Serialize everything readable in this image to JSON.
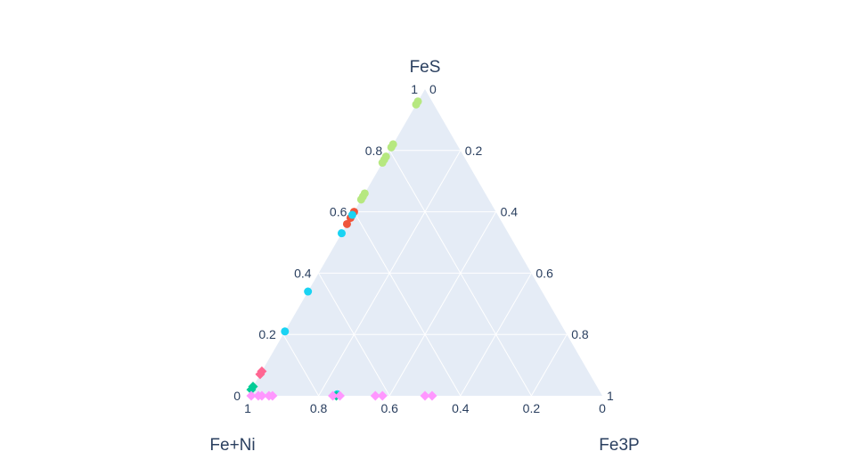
{
  "chart_data": {
    "type": "scatter",
    "subtype": "ternary",
    "title": "",
    "axes": {
      "a": {
        "title": "FeS",
        "ticks": [
          "0",
          "0.2",
          "0.4",
          "0.6",
          "0.8",
          "1"
        ]
      },
      "b": {
        "title": "Fe+Ni",
        "ticks": [
          "0",
          "0.2",
          "0.4",
          "0.6",
          "0.8",
          "1"
        ]
      },
      "c": {
        "title": "Fe3P",
        "ticks": [
          "0",
          "0.2",
          "0.4",
          "0.6",
          "0.8",
          "1"
        ]
      }
    },
    "grid": true,
    "legend": false,
    "colors": {
      "plot_bg": "#e5ecf6",
      "grid": "#ffffff",
      "text": "#2a3f5f"
    },
    "series": [
      {
        "color": "#b6e880",
        "symbol": "circle",
        "points": [
          {
            "a": 0.96,
            "b": 0.04,
            "c": 0.0
          },
          {
            "a": 0.95,
            "b": 0.05,
            "c": 0.0
          },
          {
            "a": 0.82,
            "b": 0.18,
            "c": 0.0
          },
          {
            "a": 0.81,
            "b": 0.19,
            "c": 0.0
          },
          {
            "a": 0.78,
            "b": 0.22,
            "c": 0.0
          },
          {
            "a": 0.77,
            "b": 0.23,
            "c": 0.0
          },
          {
            "a": 0.76,
            "b": 0.24,
            "c": 0.0
          },
          {
            "a": 0.66,
            "b": 0.34,
            "c": 0.0
          },
          {
            "a": 0.65,
            "b": 0.35,
            "c": 0.0
          },
          {
            "a": 0.64,
            "b": 0.36,
            "c": 0.0
          }
        ]
      },
      {
        "color": "#ef553b",
        "symbol": "circle",
        "points": [
          {
            "a": 0.6,
            "b": 0.4,
            "c": 0.0
          },
          {
            "a": 0.58,
            "b": 0.42,
            "c": 0.0
          },
          {
            "a": 0.56,
            "b": 0.44,
            "c": 0.0
          }
        ]
      },
      {
        "color": "#19d3f3",
        "symbol": "circle",
        "points": [
          {
            "a": 0.59,
            "b": 0.41,
            "c": 0.0
          },
          {
            "a": 0.53,
            "b": 0.47,
            "c": 0.0
          },
          {
            "a": 0.34,
            "b": 0.66,
            "c": 0.0
          },
          {
            "a": 0.21,
            "b": 0.79,
            "c": 0.0
          },
          {
            "a": 0.005,
            "b": 0.745,
            "c": 0.25
          }
        ]
      },
      {
        "color": "#ff6692",
        "symbol": "diamond",
        "points": [
          {
            "a": 0.08,
            "b": 0.92,
            "c": 0.0
          },
          {
            "a": 0.07,
            "b": 0.93,
            "c": 0.0
          }
        ]
      },
      {
        "color": "#00cc96",
        "symbol": "diamond",
        "points": [
          {
            "a": 0.03,
            "b": 0.97,
            "c": 0.0
          },
          {
            "a": 0.02,
            "b": 0.98,
            "c": 0.0
          },
          {
            "a": 0.0,
            "b": 0.75,
            "c": 0.25
          }
        ]
      },
      {
        "color": "#ff97ff",
        "symbol": "diamond",
        "points": [
          {
            "a": 0.0,
            "b": 0.99,
            "c": 0.01
          },
          {
            "a": 0.0,
            "b": 0.97,
            "c": 0.03
          },
          {
            "a": 0.0,
            "b": 0.96,
            "c": 0.04
          },
          {
            "a": 0.0,
            "b": 0.94,
            "c": 0.06
          },
          {
            "a": 0.0,
            "b": 0.93,
            "c": 0.07
          },
          {
            "a": 0.0,
            "b": 0.76,
            "c": 0.24
          },
          {
            "a": 0.0,
            "b": 0.74,
            "c": 0.26
          },
          {
            "a": 0.0,
            "b": 0.64,
            "c": 0.36
          },
          {
            "a": 0.0,
            "b": 0.62,
            "c": 0.38
          },
          {
            "a": 0.0,
            "b": 0.5,
            "c": 0.5
          },
          {
            "a": 0.0,
            "b": 0.48,
            "c": 0.52
          }
        ]
      }
    ]
  }
}
